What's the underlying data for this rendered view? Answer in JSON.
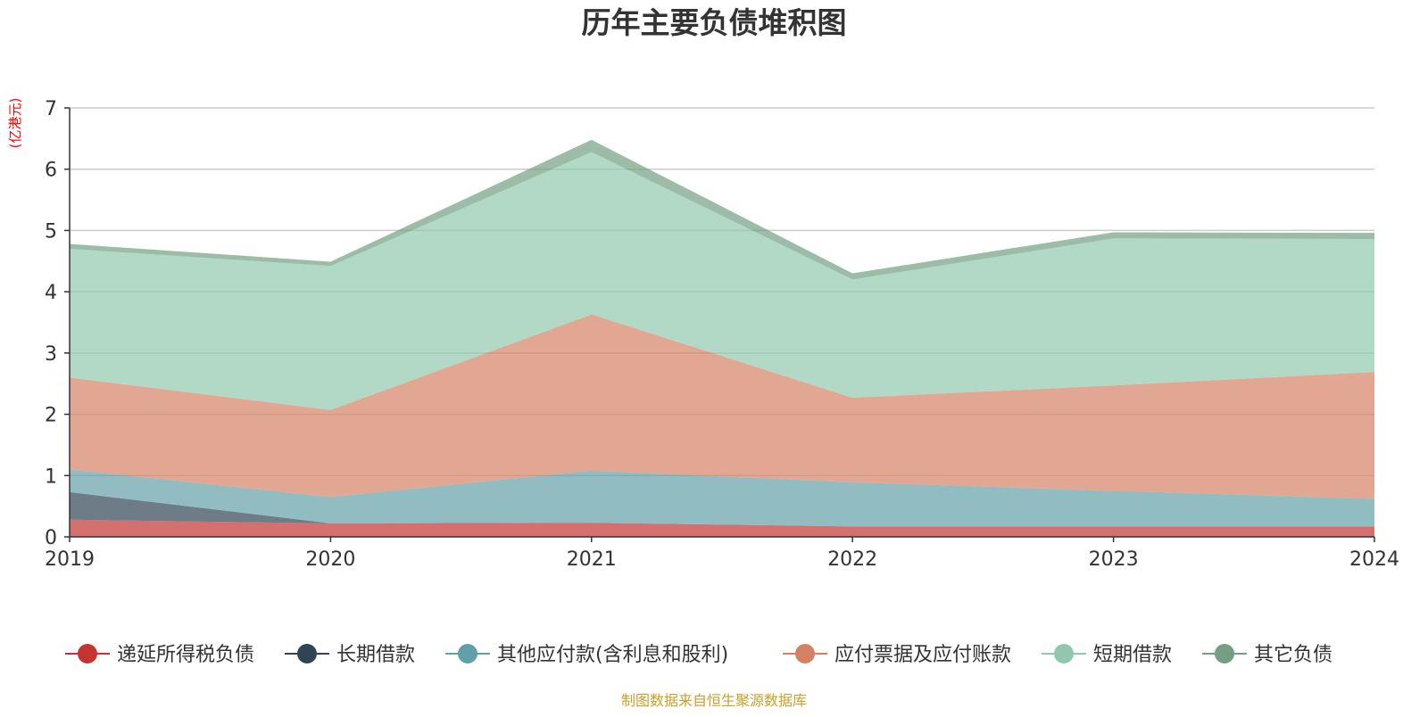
{
  "chart_data": {
    "type": "area",
    "stacked": true,
    "title": "历年主要负债堆积图",
    "unit_label": "(亿港元)",
    "x": [
      "2019",
      "2020",
      "2021",
      "2022",
      "2023",
      "2024"
    ],
    "ylim": [
      0,
      7
    ],
    "yticks": [
      "0",
      "1",
      "2",
      "3",
      "4",
      "5",
      "6",
      "7"
    ],
    "grid": true,
    "legend_position": "bottom",
    "series": [
      {
        "name": "递延所得税负债",
        "color": "#c23531",
        "values": [
          0.28,
          0.22,
          0.23,
          0.17,
          0.17,
          0.17
        ]
      },
      {
        "name": "长期借款",
        "color": "#2f4554",
        "values": [
          0.45,
          0.0,
          0.0,
          0.0,
          0.0,
          0.0
        ]
      },
      {
        "name": "其他应付款(含利息和股利)",
        "color": "#61a0a8",
        "values": [
          0.37,
          0.43,
          0.85,
          0.72,
          0.58,
          0.45
        ]
      },
      {
        "name": "应付票据及应付账款",
        "color": "#d48265",
        "values": [
          1.5,
          1.42,
          2.55,
          1.38,
          1.72,
          2.07
        ]
      },
      {
        "name": "短期借款",
        "color": "#91c7ae",
        "values": [
          2.1,
          2.35,
          2.65,
          1.93,
          2.4,
          2.17
        ]
      },
      {
        "name": "其它负债",
        "color": "#749f83",
        "values": [
          0.08,
          0.07,
          0.2,
          0.1,
          0.1,
          0.1
        ]
      }
    ],
    "source_note": "制图数据来自恒生聚源数据库"
  }
}
